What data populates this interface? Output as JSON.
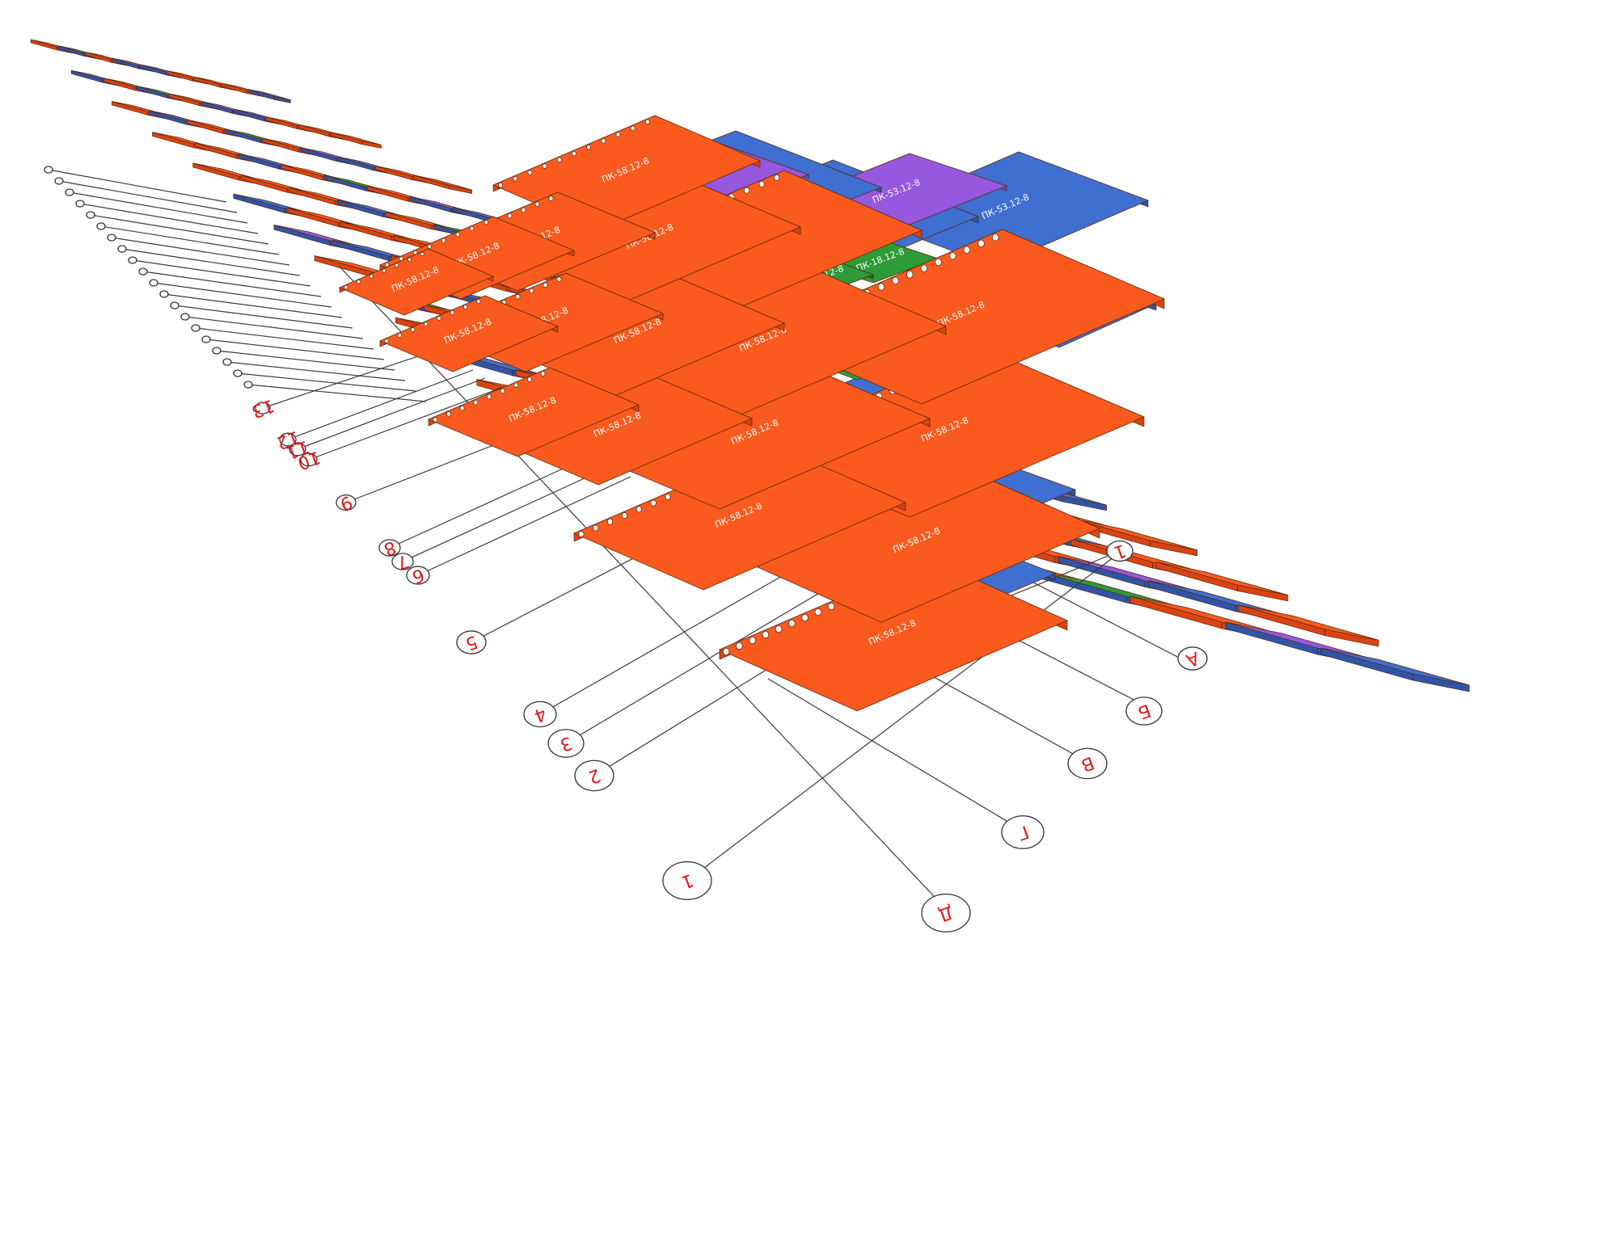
{
  "colors": {
    "slab_pk": "#fa5a1e",
    "slab_pk_side": "#d94412",
    "slab_blue": "#3f6fd0",
    "slab_blue_side": "#2f55a8",
    "slab_violet": "#9558de",
    "slab_green": "#2f9a38",
    "axis_label": "#e0171c"
  },
  "axes_letters": [
    {
      "label": "А"
    },
    {
      "label": "Б"
    },
    {
      "label": "В"
    },
    {
      "label": "Г"
    },
    {
      "label": "Д"
    }
  ],
  "axes_numbers": [
    {
      "label": "1"
    },
    {
      "label": "2"
    },
    {
      "label": "3"
    },
    {
      "label": "4"
    },
    {
      "label": "5"
    },
    {
      "label": "6"
    },
    {
      "label": "7"
    },
    {
      "label": "8"
    },
    {
      "label": "9"
    },
    {
      "label": "10"
    },
    {
      "label": "11"
    },
    {
      "label": "12"
    },
    {
      "label": "13"
    }
  ],
  "slab_marks": {
    "orange": "ПК-58.12-8",
    "blue": "ПК-53.12-8",
    "green": "ПК-18.12-8"
  }
}
